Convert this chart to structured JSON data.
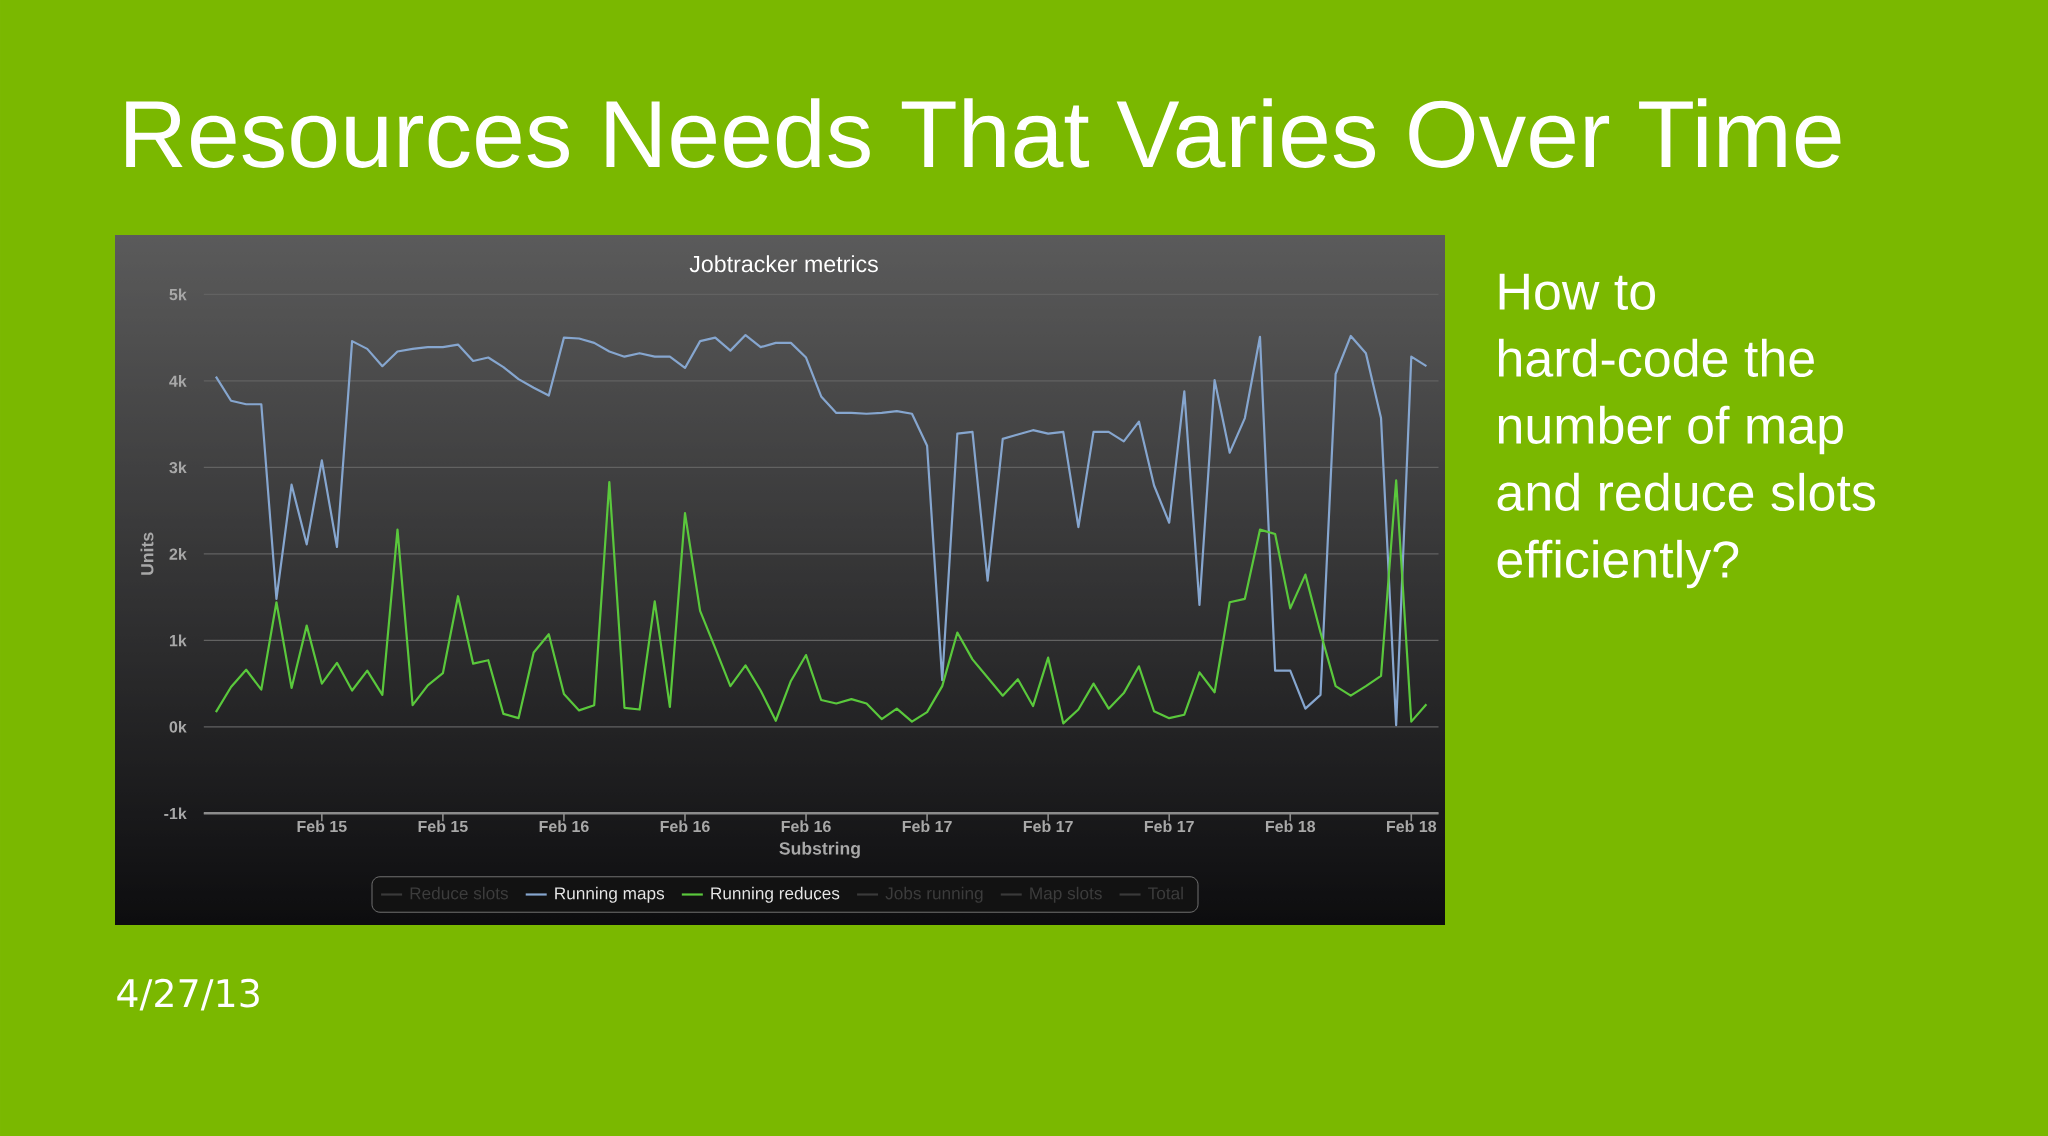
{
  "chart_data": {
    "type": "line",
    "title": "Resources Needs That Varies Over Time",
    "subtitle": "Jobtracker metrics",
    "xlabel": "Substring",
    "ylabel": "Units",
    "categories": [
      null,
      null,
      null,
      null,
      null,
      null,
      null,
      "Feb 15",
      null,
      null,
      null,
      null,
      null,
      null,
      null,
      "Feb 15",
      null,
      null,
      null,
      null,
      null,
      null,
      null,
      "Feb 16",
      null,
      null,
      null,
      null,
      null,
      null,
      null,
      "Feb 16",
      null,
      null,
      null,
      null,
      null,
      null,
      null,
      "Feb 16",
      null,
      null,
      null,
      null,
      null,
      null,
      null,
      "Feb 17",
      null,
      null,
      null,
      null,
      null,
      null,
      null,
      "Feb 17",
      null,
      null,
      null,
      null,
      null,
      null,
      null,
      "Feb 17",
      null,
      null,
      null,
      null,
      null,
      null,
      null,
      "Feb 18",
      null,
      null,
      null,
      null,
      null,
      null,
      null,
      "Feb 18",
      null
    ],
    "ylim": [
      -1000,
      5000
    ],
    "yticks": [
      {
        "value": -1000,
        "label": "-1k"
      },
      {
        "value": 0,
        "label": "0k"
      },
      {
        "value": 1000,
        "label": "1k"
      },
      {
        "value": 2000,
        "label": "2k"
      },
      {
        "value": 3000,
        "label": "3k"
      },
      {
        "value": 4000,
        "label": "4k"
      },
      {
        "value": 5000,
        "label": "5k"
      }
    ],
    "series": [
      {
        "name": "Reduce slots",
        "color": "#3a3a3a",
        "values": [
          null,
          null,
          null,
          null,
          null,
          null,
          null,
          null,
          null,
          null,
          null,
          null,
          null,
          null,
          null,
          null,
          null,
          null,
          null,
          null,
          null,
          null,
          null,
          null,
          null,
          null,
          null,
          null,
          null,
          null,
          null,
          null,
          null,
          null,
          null,
          null,
          null,
          null,
          null,
          null,
          null,
          null,
          null,
          null,
          null,
          null,
          null,
          null,
          null,
          null,
          null,
          null,
          null,
          null,
          null,
          null,
          null,
          null,
          null,
          null,
          null,
          null,
          null,
          null,
          null,
          null,
          null,
          null,
          null,
          null,
          null,
          null,
          null,
          null,
          null,
          null,
          null,
          null,
          null,
          null,
          null
        ]
      },
      {
        "name": "Running maps",
        "color": "#86a6cf",
        "values": [
          4050,
          3770,
          3730,
          3730,
          1480,
          2800,
          2110,
          3080,
          2080,
          4460,
          4370,
          4170,
          4340,
          4370,
          4390,
          4390,
          4420,
          4230,
          4270,
          4160,
          4020,
          3920,
          3830,
          4500,
          4490,
          4440,
          4340,
          4280,
          4320,
          4280,
          4280,
          4150,
          4460,
          4500,
          4350,
          4530,
          4390,
          4440,
          4440,
          4270,
          3820,
          3630,
          3630,
          3620,
          3630,
          3650,
          3620,
          3250,
          540,
          3390,
          3410,
          1690,
          3330,
          3380,
          3430,
          3390,
          3410,
          2310,
          3410,
          3410,
          3300,
          3530,
          2790,
          2360,
          3880,
          1410,
          4010,
          3170,
          3570,
          4510,
          650,
          650,
          210,
          370,
          4080,
          4520,
          4320,
          3570,
          20,
          4280,
          4170
        ]
      },
      {
        "name": "Running reduces",
        "color": "#5ac83c",
        "values": [
          170,
          460,
          660,
          430,
          1440,
          450,
          1170,
          500,
          740,
          420,
          650,
          370,
          2280,
          250,
          480,
          620,
          1510,
          730,
          770,
          150,
          100,
          860,
          1070,
          380,
          190,
          250,
          2830,
          220,
          200,
          1450,
          230,
          2470,
          1340,
          910,
          470,
          710,
          420,
          70,
          530,
          830,
          310,
          270,
          320,
          270,
          90,
          210,
          60,
          170,
          470,
          1090,
          780,
          570,
          360,
          550,
          240,
          800,
          40,
          200,
          500,
          210,
          390,
          700,
          180,
          100,
          140,
          630,
          400,
          1440,
          1480,
          2280,
          2230,
          1370,
          1760,
          1090,
          470,
          360,
          470,
          590,
          2850,
          60,
          260
        ]
      },
      {
        "name": "Jobs running",
        "color": "#3a3a3a",
        "values": [
          null,
          null,
          null,
          null,
          null,
          null,
          null,
          null,
          null,
          null,
          null,
          null,
          null,
          null,
          null,
          null,
          null,
          null,
          null,
          null,
          null,
          null,
          null,
          null,
          null,
          null,
          null,
          null,
          null,
          null,
          null,
          null,
          null,
          null,
          null,
          null,
          null,
          null,
          null,
          null,
          null,
          null,
          null,
          null,
          null,
          null,
          null,
          null,
          null,
          null,
          null,
          null,
          null,
          null,
          null,
          null,
          null,
          null,
          null,
          null,
          null,
          null,
          null,
          null,
          null,
          null,
          null,
          null,
          null,
          null,
          null,
          null,
          null,
          null,
          null,
          null,
          null,
          null,
          null,
          null,
          null
        ]
      },
      {
        "name": "Map slots",
        "color": "#3a3a3a",
        "values": [
          null,
          null,
          null,
          null,
          null,
          null,
          null,
          null,
          null,
          null,
          null,
          null,
          null,
          null,
          null,
          null,
          null,
          null,
          null,
          null,
          null,
          null,
          null,
          null,
          null,
          null,
          null,
          null,
          null,
          null,
          null,
          null,
          null,
          null,
          null,
          null,
          null,
          null,
          null,
          null,
          null,
          null,
          null,
          null,
          null,
          null,
          null,
          null,
          null,
          null,
          null,
          null,
          null,
          null,
          null,
          null,
          null,
          null,
          null,
          null,
          null,
          null,
          null,
          null,
          null,
          null,
          null,
          null,
          null,
          null,
          null,
          null,
          null,
          null,
          null,
          null,
          null,
          null,
          null,
          null,
          null
        ]
      },
      {
        "name": "Total",
        "color": "#3a3a3a",
        "values": [
          null,
          null,
          null,
          null,
          null,
          null,
          null,
          null,
          null,
          null,
          null,
          null,
          null,
          null,
          null,
          null,
          null,
          null,
          null,
          null,
          null,
          null,
          null,
          null,
          null,
          null,
          null,
          null,
          null,
          null,
          null,
          null,
          null,
          null,
          null,
          null,
          null,
          null,
          null,
          null,
          null,
          null,
          null,
          null,
          null,
          null,
          null,
          null,
          null,
          null,
          null,
          null,
          null,
          null,
          null,
          null,
          null,
          null,
          null,
          null,
          null,
          null,
          null,
          null,
          null,
          null,
          null,
          null,
          null,
          null,
          null,
          null,
          null,
          null,
          null,
          null,
          null,
          null,
          null,
          null,
          null
        ]
      }
    ],
    "grid": "y",
    "legend": "bottom",
    "marker": "none",
    "line_style": "solid",
    "annotations": [
      "How to hard-code the number of map and reduce slots efficiently?",
      "4/27/13"
    ]
  }
}
